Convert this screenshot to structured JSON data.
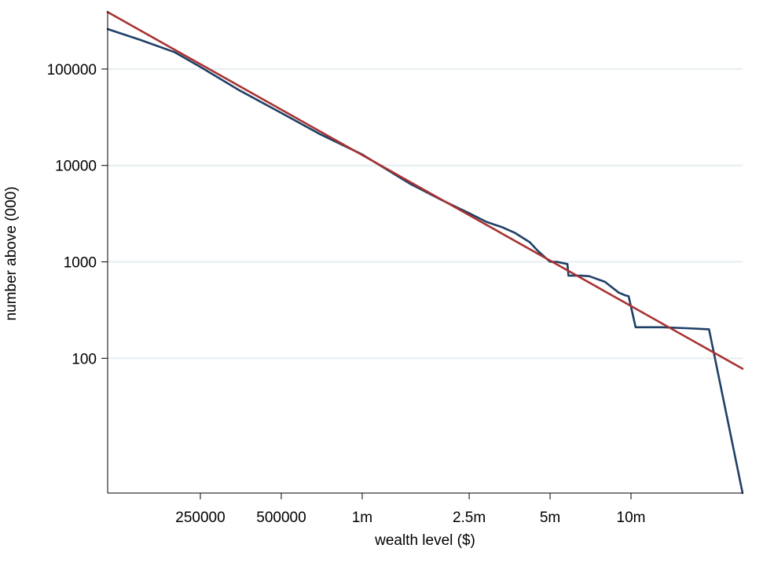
{
  "chart_data": {
    "type": "line",
    "title": "",
    "xlabel": "wealth level ($)",
    "ylabel": "number above (000)",
    "x_scale": "log",
    "y_scale": "log",
    "xlim": [
      113000,
      26000000
    ],
    "ylim": [
      4,
      400000
    ],
    "grid": "horizontal",
    "legend": "none",
    "x_ticks": [
      {
        "value": 250000,
        "label": "250000"
      },
      {
        "value": 500000,
        "label": "500000"
      },
      {
        "value": 1000000,
        "label": "1m"
      },
      {
        "value": 2500000,
        "label": "2.5m"
      },
      {
        "value": 5000000,
        "label": "5m"
      },
      {
        "value": 10000000,
        "label": "10m"
      }
    ],
    "y_ticks": [
      {
        "value": 100,
        "label": "100"
      },
      {
        "value": 1000,
        "label": "1000"
      },
      {
        "value": 10000,
        "label": "10000"
      },
      {
        "value": 100000,
        "label": "100000"
      }
    ],
    "series": [
      {
        "style": "stepped-line",
        "color": "#1f3f66",
        "x": [
          113000,
          150000,
          200000,
          250000,
          350000,
          500000,
          700000,
          1000000,
          1500000,
          2000000,
          2500000,
          2900000,
          3300000,
          3700000,
          4200000,
          4500000,
          5000000,
          5300000,
          5800000,
          5850000,
          6500000,
          7000000,
          8000000,
          9000000,
          9500000,
          9800000,
          10400000,
          13000000,
          16000000,
          19500000,
          26000000
        ],
        "y": [
          260000,
          200000,
          150000,
          105000,
          60000,
          35000,
          21000,
          13000,
          6500,
          4300,
          3200,
          2600,
          2300,
          2000,
          1600,
          1300,
          1000,
          1000,
          950,
          720,
          720,
          710,
          620,
          480,
          450,
          440,
          210,
          210,
          205,
          200,
          4
        ]
      },
      {
        "style": "line",
        "color": "#a83232",
        "x": [
          113000,
          26000000
        ],
        "y": [
          390000,
          78
        ]
      }
    ]
  }
}
